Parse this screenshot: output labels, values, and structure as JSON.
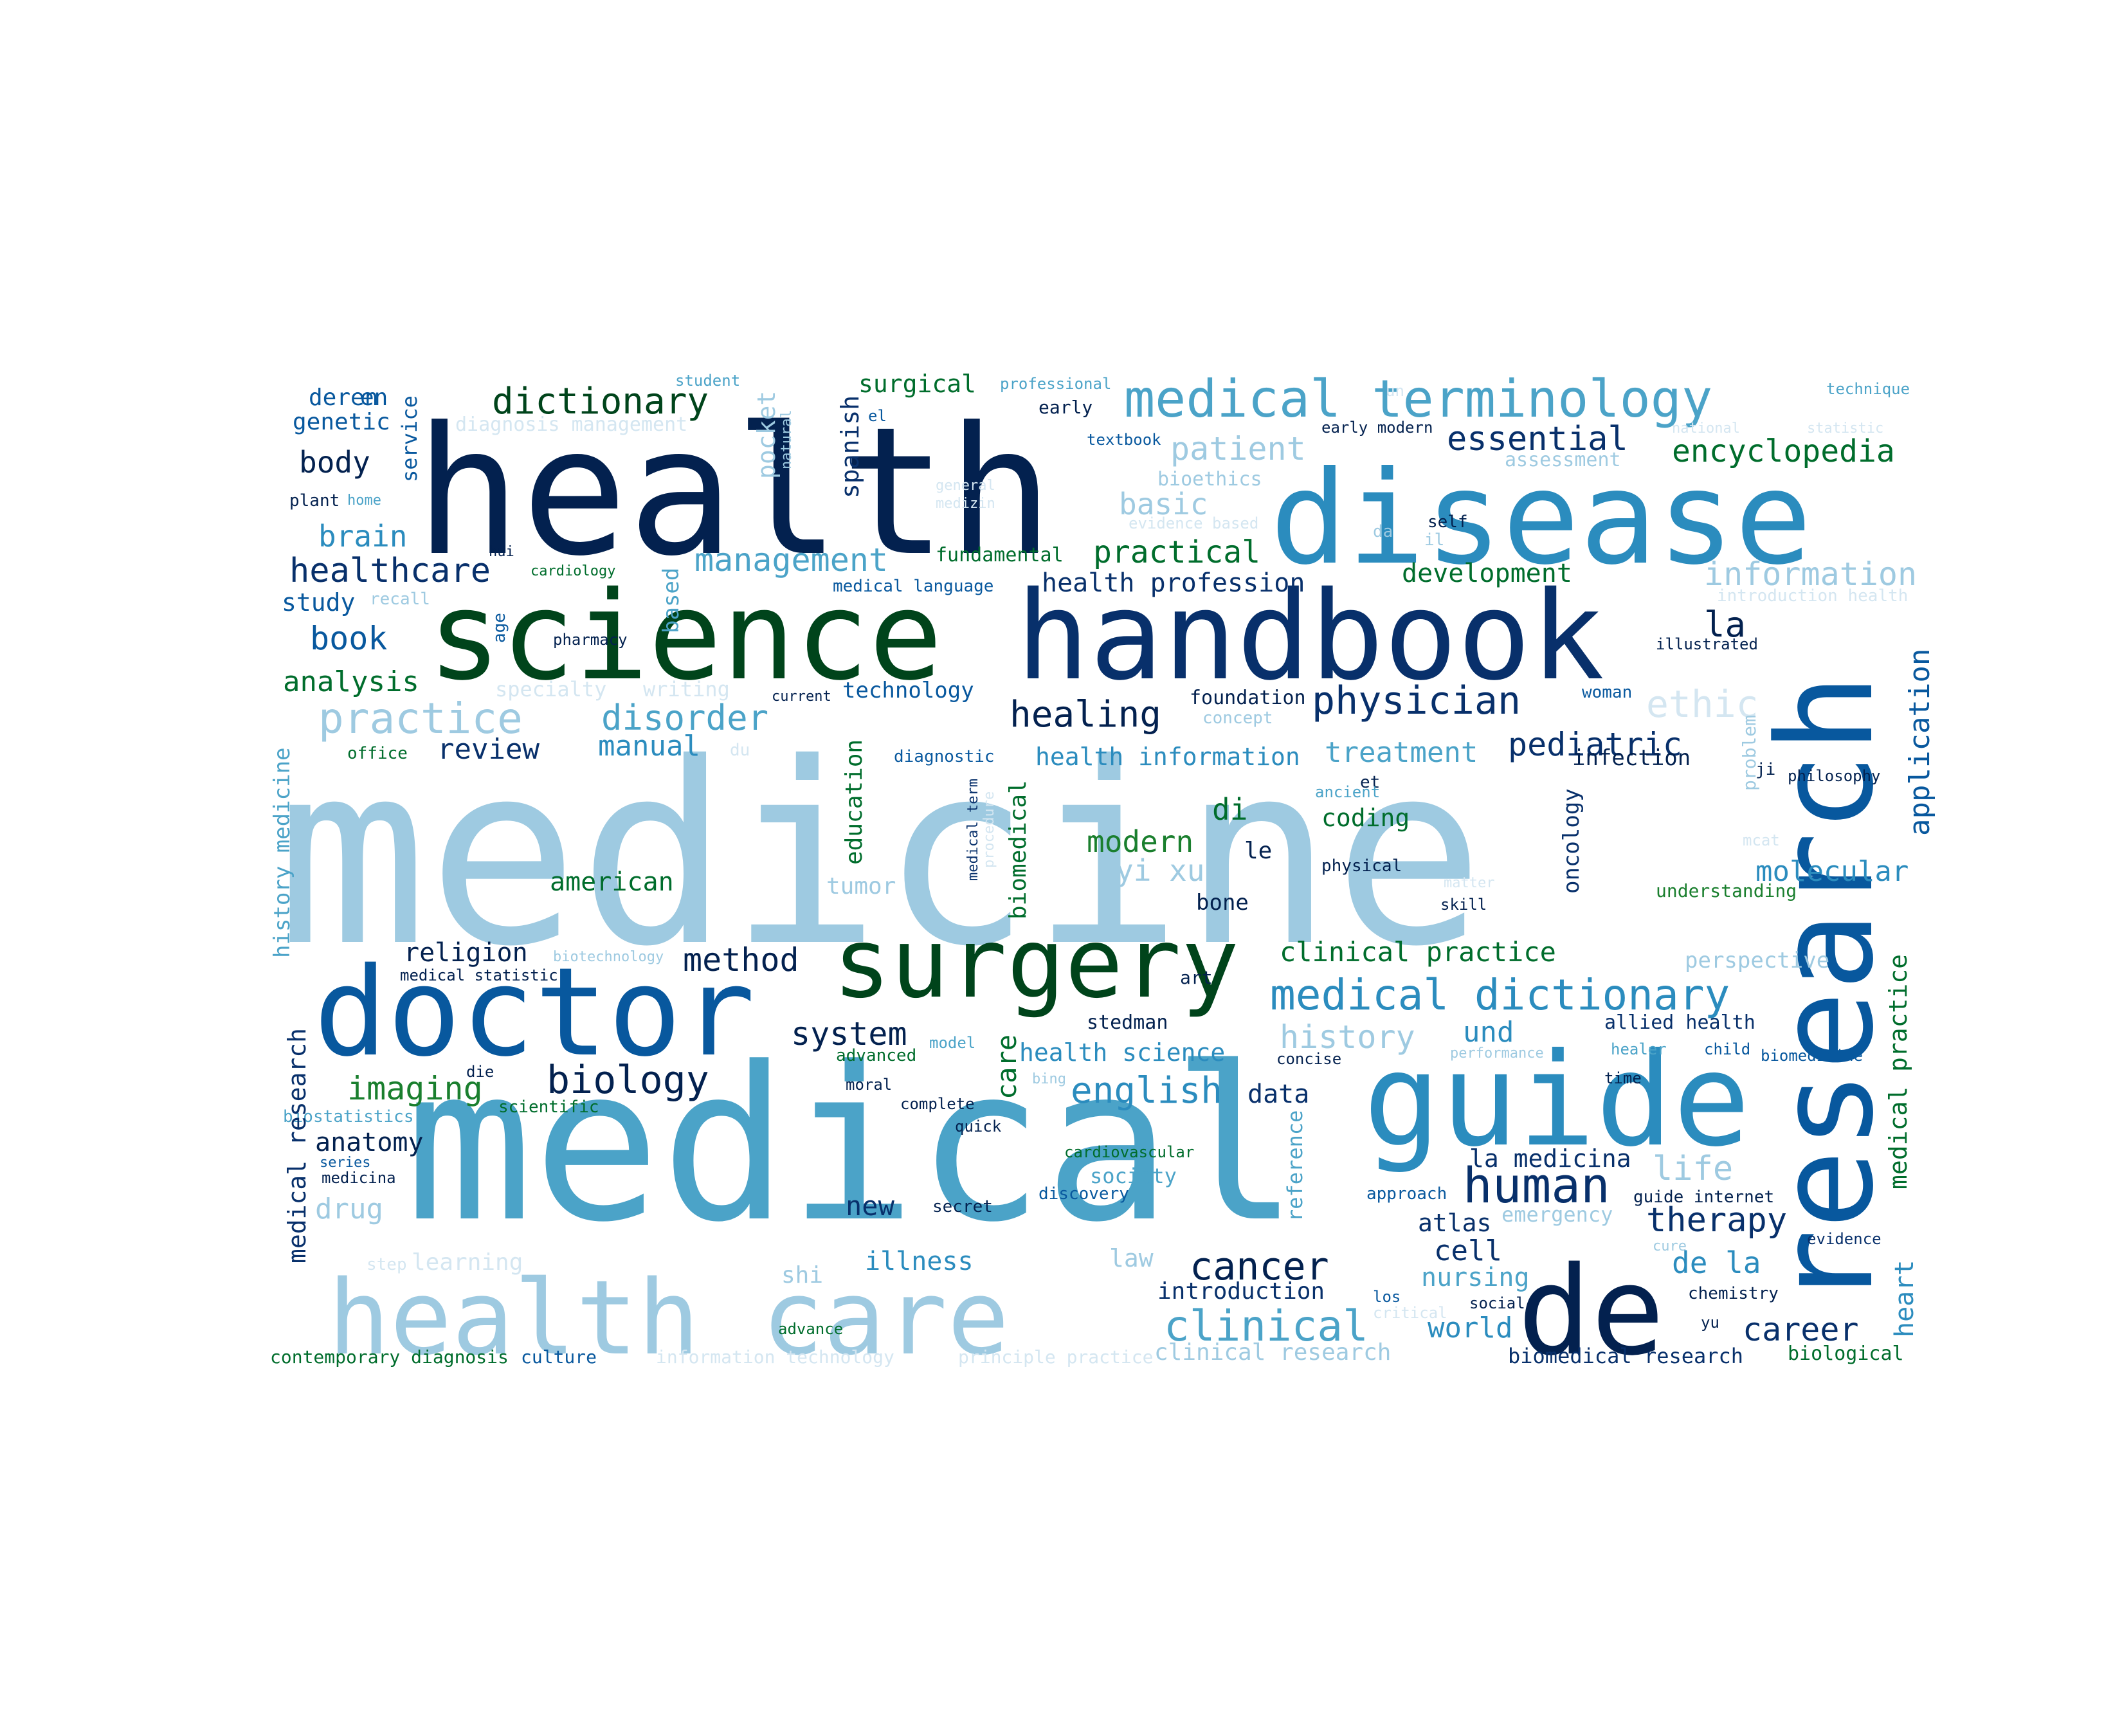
{
  "palette": {
    "light": "#9ecae1",
    "mid": "#4ba3c8",
    "teal": "#2b8cbe",
    "blue": "#08589e",
    "navy": "#08306b",
    "darknavy": "#03214f",
    "green": "#00441b",
    "darkgreen": "#006d2c",
    "midgreen": "#1a7f2e",
    "pale": "#d4e6f1"
  },
  "words": [
    "medicine",
    "medical",
    "health",
    "disease",
    "science",
    "handbook",
    "research",
    "guide",
    "doctor",
    "surgery",
    "health care",
    "de",
    "medical terminology",
    "dictionary",
    "essential",
    "patient",
    "encyclopedia",
    "surgical",
    "spanish",
    "pocket",
    "service",
    "body",
    "genetic",
    "deren",
    "plant",
    "home",
    "student",
    "professional",
    "early",
    "technique",
    "un",
    "early modern",
    "national",
    "statistic",
    "textbook",
    "assessment",
    "bioethics",
    "general",
    "medizin",
    "basic",
    "evidence based",
    "self",
    "da",
    "il",
    "hui",
    "cardiology",
    "natural",
    "practical",
    "fundamental",
    "management",
    "brain",
    "healthcare",
    "study",
    "recall",
    "based",
    "age",
    "medical language",
    "health profession",
    "development",
    "information",
    "introduction health",
    "book",
    "pharmacy",
    "la",
    "illustrated",
    "analysis",
    "specialty",
    "writing",
    "current",
    "technology",
    "foundation",
    "concept",
    "woman",
    "ethic",
    "practice",
    "disorder",
    "healing",
    "physician",
    "application",
    "office",
    "review",
    "manual",
    "du",
    "diagnostic",
    "health information",
    "treatment",
    "pediatric",
    "infection",
    "education",
    "problem",
    "ji",
    "philosophy",
    "history medicine",
    "biomedical",
    "medical term",
    "procedure",
    "et",
    "ancient",
    "di",
    "coding",
    "modern",
    "le",
    "oncology",
    "molecular",
    "mcat",
    "yi xue",
    "physical",
    "american",
    "tumor",
    "matter",
    "skill",
    "understanding",
    "bone",
    "religion",
    "biotechnology",
    "method",
    "clinical practice",
    "medical statistic",
    "art",
    "perspective",
    "medical practice",
    "medical dictionary",
    "system",
    "care",
    "stedman",
    "allied health",
    "history",
    "und",
    "advanced",
    "model",
    "health science",
    "concise",
    "performance",
    "healer",
    "child",
    "biomedicine",
    "die",
    "biology",
    "imaging",
    "english",
    "data",
    "moral",
    "bing",
    "time",
    "scientific",
    "complete",
    "quick",
    "biostatistics",
    "anatomy",
    "series",
    "cardiovascular",
    "la medicina",
    "life",
    "medicina",
    "society",
    "discovery",
    "human",
    "reference",
    "approach",
    "guide internet",
    "drug",
    "new",
    "secret",
    "atlas",
    "emergency",
    "therapy",
    "cure",
    "evidence",
    "learning",
    "illness",
    "law",
    "cancer",
    "cell",
    "de la",
    "heart",
    "shi",
    "nursing",
    "introduction",
    "chemistry",
    "los",
    "social",
    "critical",
    "clinical",
    "career",
    "world",
    "yu",
    "advance",
    "contemporary diagnosis",
    "culture",
    "information technology",
    "principle practice",
    "clinical research",
    "biomedical research",
    "biological",
    "diagnosis management",
    "en",
    "el",
    "medical research",
    "step"
  ]
}
